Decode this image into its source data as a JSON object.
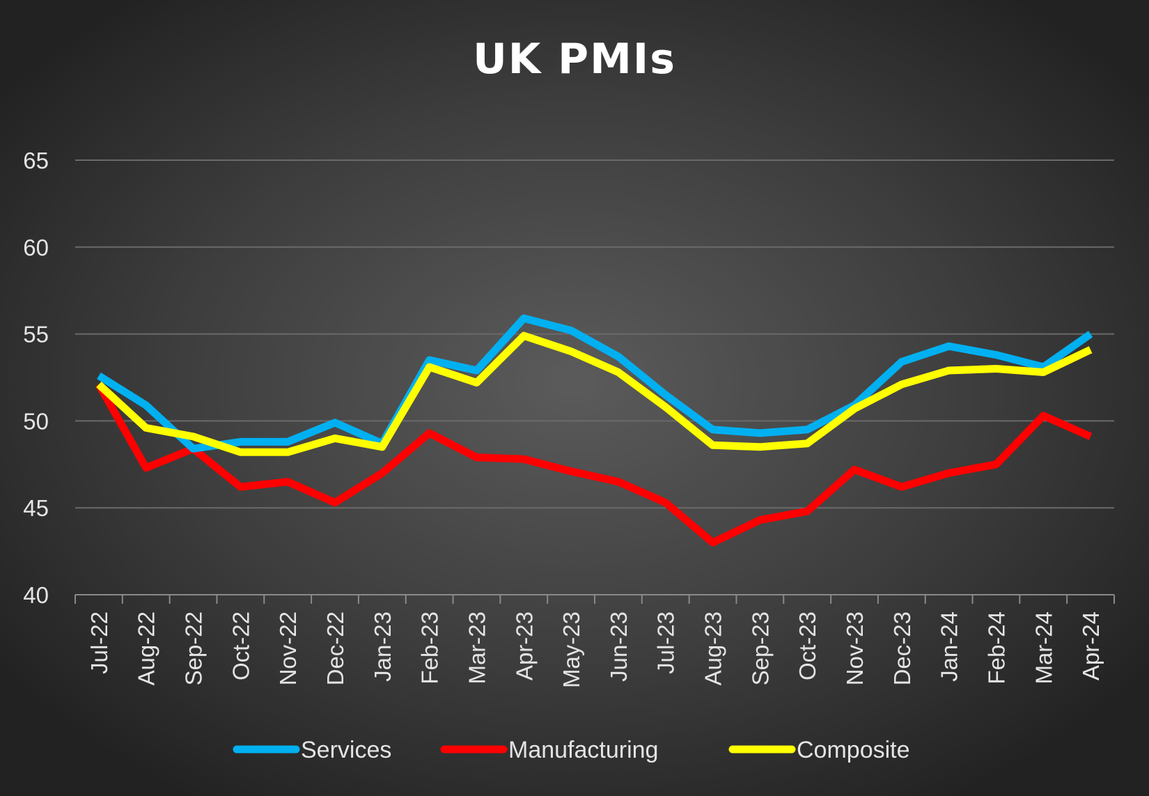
{
  "chart_data": {
    "type": "line",
    "title": "UK PMIs",
    "categories": [
      "Jul-22",
      "Aug-22",
      "Sep-22",
      "Oct-22",
      "Nov-22",
      "Dec-22",
      "Jan-23",
      "Feb-23",
      "Mar-23",
      "Apr-23",
      "May-23",
      "Jun-23",
      "Jul-23",
      "Aug-23",
      "Sep-23",
      "Oct-23",
      "Nov-23",
      "Dec-23",
      "Jan-24",
      "Feb-24",
      "Mar-24",
      "Apr-24"
    ],
    "ylim": [
      40,
      65
    ],
    "yticks": [
      40,
      45,
      50,
      55,
      60,
      65
    ],
    "grid": true,
    "legend_position": "bottom",
    "series": [
      {
        "name": "Services",
        "color": "#00b0f0",
        "values": [
          52.6,
          50.9,
          48.4,
          48.8,
          48.8,
          49.9,
          48.7,
          53.5,
          52.9,
          55.9,
          55.2,
          53.7,
          51.5,
          49.5,
          49.3,
          49.5,
          50.9,
          53.4,
          54.3,
          53.8,
          53.1,
          55.0
        ]
      },
      {
        "name": "Manufacturing",
        "color": "#ff0000",
        "values": [
          52.1,
          47.3,
          48.4,
          46.2,
          46.5,
          45.3,
          47.0,
          49.3,
          47.9,
          47.8,
          47.1,
          46.5,
          45.3,
          43.0,
          44.3,
          44.8,
          47.2,
          46.2,
          47.0,
          47.5,
          50.3,
          49.1
        ]
      },
      {
        "name": "Composite",
        "color": "#ffff00",
        "values": [
          52.1,
          49.6,
          49.1,
          48.2,
          48.2,
          49.0,
          48.5,
          53.1,
          52.2,
          54.9,
          54.0,
          52.8,
          50.8,
          48.6,
          48.5,
          48.7,
          50.7,
          52.1,
          52.9,
          53.0,
          52.8,
          54.1
        ]
      }
    ]
  }
}
